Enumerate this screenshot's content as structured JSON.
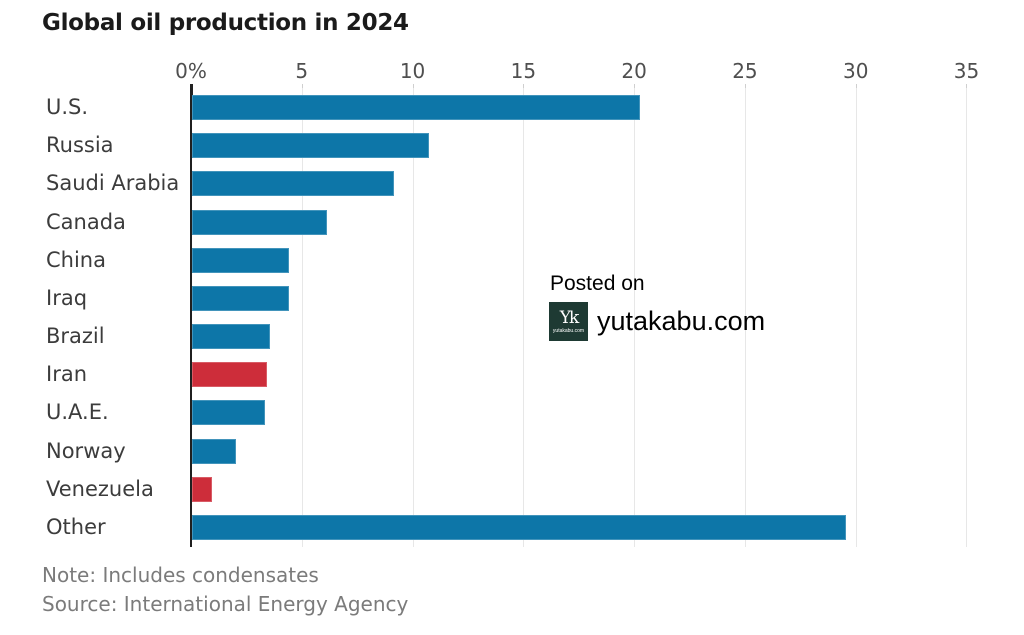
{
  "chart_data": {
    "type": "bar",
    "orientation": "horizontal",
    "title": "Global oil production in 2024",
    "note": "Note: Includes condensates",
    "source": "Source: International Energy Agency",
    "x_axis": {
      "range": [
        0,
        35
      ],
      "tick_values": [
        0,
        5,
        10,
        15,
        20,
        25,
        30,
        35
      ],
      "tick_labels": [
        "0%",
        "5",
        "10",
        "15",
        "20",
        "25",
        "30",
        "35"
      ],
      "grid": true,
      "position": "top"
    },
    "categories": [
      "U.S.",
      "Russia",
      "Saudi Arabia",
      "Canada",
      "China",
      "Iraq",
      "Brazil",
      "Iran",
      "U.A.E.",
      "Norway",
      "Venezuela",
      "Other"
    ],
    "values": [
      20.2,
      10.7,
      9.1,
      6.1,
      4.4,
      4.4,
      3.5,
      3.4,
      3.3,
      2.0,
      0.9,
      29.5
    ],
    "bar_colors": [
      "default",
      "default",
      "default",
      "default",
      "default",
      "default",
      "default",
      "highlight",
      "default",
      "default",
      "highlight",
      "default"
    ],
    "palette": {
      "default": "#0d76a8",
      "highlight": "#cd2d3a"
    }
  },
  "watermark": {
    "posted_on": "Posted on",
    "site": "yutakabu.com",
    "logo_monogram": "Yk",
    "logo_caption": "yutakabu.com",
    "logo_bg": "#1e3a33"
  }
}
